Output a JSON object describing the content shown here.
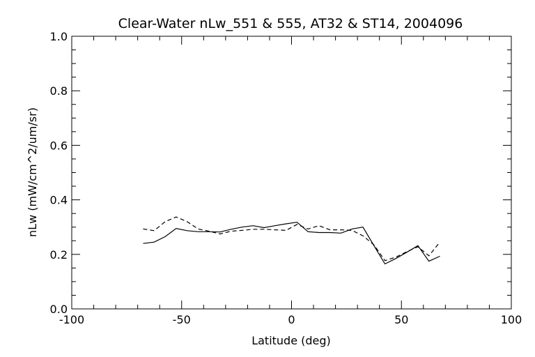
{
  "chart_data": {
    "type": "line",
    "title": "Clear-Water nLw_551 & 555, AT32 & ST14, 2004096",
    "xlabel": "Latitude (deg)",
    "ylabel": "nLw (mW/cm^2/um/sr)",
    "xlim": [
      -100,
      100
    ],
    "ylim": [
      0.0,
      1.0
    ],
    "xticks": [
      "-100",
      "-50",
      "0",
      "50",
      "100"
    ],
    "yticks": [
      "0.0",
      "0.2",
      "0.4",
      "0.6",
      "0.8",
      "1.0"
    ],
    "grid": false,
    "series": [
      {
        "style": "solid",
        "color": "#000000",
        "x": [
          -67.5,
          -62.5,
          -57.5,
          -52.5,
          -47.5,
          -42.5,
          -37.5,
          -32.5,
          -27.5,
          -22.5,
          -17.5,
          -12.5,
          -7.5,
          -2.5,
          2.5,
          7.5,
          12.5,
          17.5,
          22.5,
          27.5,
          32.5,
          37.5,
          42.5,
          47.5,
          52.5,
          57.5,
          62.5,
          67.5
        ],
        "y": [
          0.24,
          0.245,
          0.265,
          0.295,
          0.287,
          0.283,
          0.283,
          0.282,
          0.292,
          0.3,
          0.305,
          0.298,
          0.305,
          0.312,
          0.318,
          0.283,
          0.28,
          0.28,
          0.278,
          0.293,
          0.3,
          0.232,
          0.165,
          0.185,
          0.208,
          0.232,
          0.175,
          0.193
        ]
      },
      {
        "style": "dashed",
        "color": "#000000",
        "x": [
          -67.5,
          -62.5,
          -57.5,
          -52.5,
          -47.5,
          -42.5,
          -37.5,
          -32.5,
          -27.5,
          -22.5,
          -17.5,
          -12.5,
          -7.5,
          -2.5,
          2.5,
          7.5,
          12.5,
          17.5,
          22.5,
          27.5,
          32.5,
          37.5,
          42.5,
          47.5,
          52.5,
          57.5,
          62.5,
          67.5
        ],
        "y": [
          0.293,
          0.287,
          0.32,
          0.337,
          0.32,
          0.293,
          0.285,
          0.275,
          0.285,
          0.288,
          0.292,
          0.292,
          0.29,
          0.288,
          0.31,
          0.293,
          0.305,
          0.29,
          0.29,
          0.288,
          0.268,
          0.235,
          0.177,
          0.19,
          0.21,
          0.228,
          0.195,
          0.245
        ]
      }
    ]
  }
}
